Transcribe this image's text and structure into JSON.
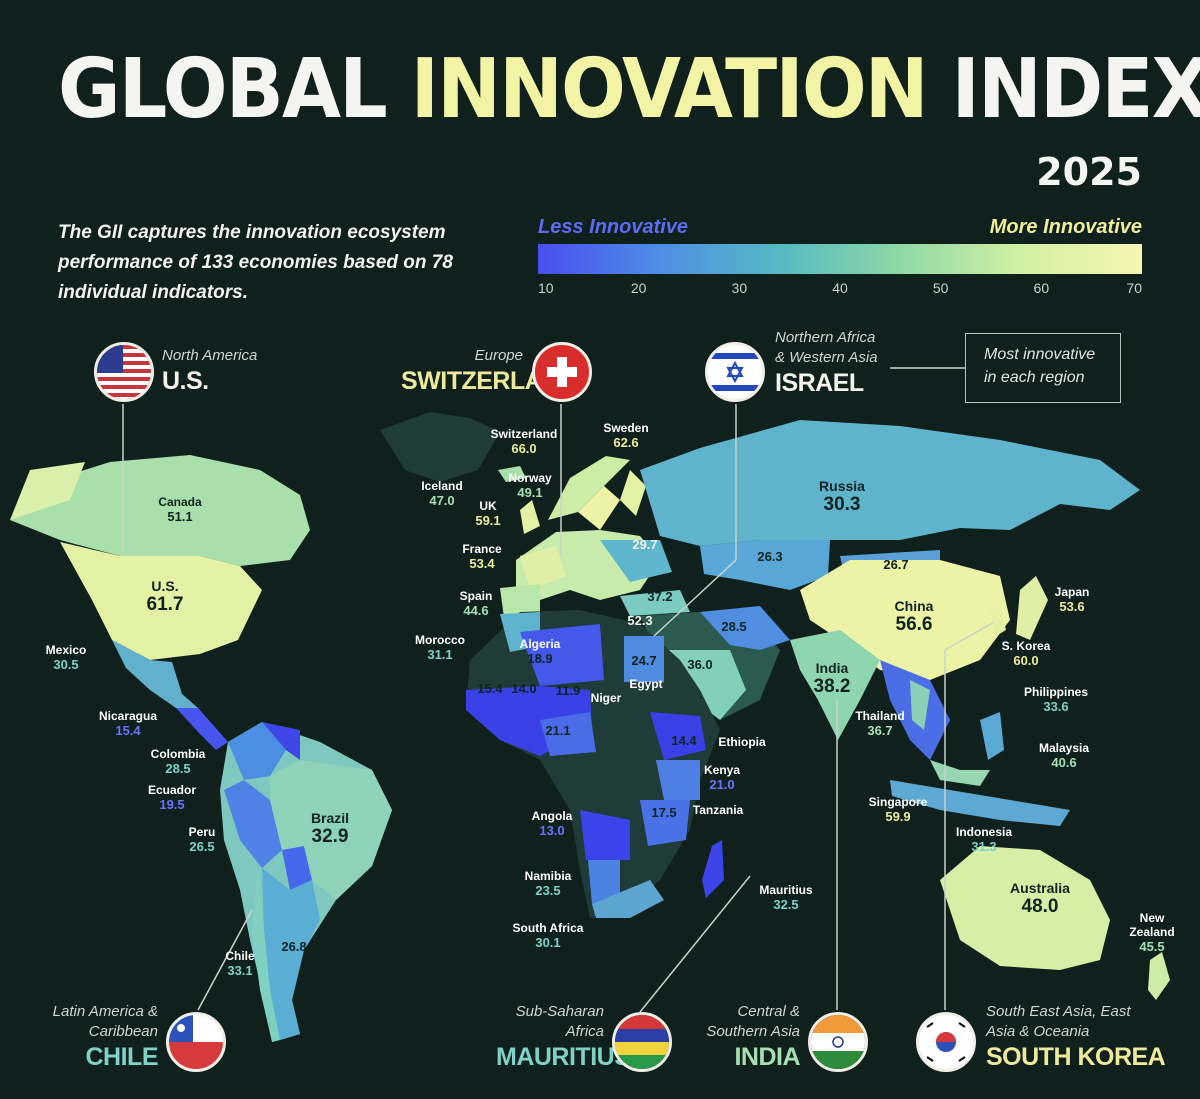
{
  "title": {
    "part1": "GLOBAL",
    "part2": "INNOVATION",
    "part3": "INDEX",
    "year": "2025"
  },
  "subtitle": "The GII captures the innovation ecosystem performance of 133 economies based on 78 individual indicators.",
  "legend": {
    "low_label": "Less Innovative",
    "high_label": "More Innovative",
    "ticks": [
      "10",
      "20",
      "30",
      "40",
      "50",
      "60",
      "70"
    ],
    "range": [
      10,
      70
    ]
  },
  "note": "Most innovative in each region",
  "colors": {
    "background": "#10201d",
    "scale_low": "#4a4ff0",
    "scale_high": "#f5f5b0",
    "accent": "#f3f3a6"
  },
  "regions": [
    {
      "region": "North America",
      "country": "U.S.",
      "flag": "us-flag"
    },
    {
      "region": "Europe",
      "country": "SWITZERLAND",
      "flag": "swiss-flag"
    },
    {
      "region": "Northern Africa & Western Asia",
      "country": "ISRAEL",
      "flag": "israel-flag"
    },
    {
      "region": "Latin America & Caribbean",
      "country": "CHILE",
      "flag": "chile-flag"
    },
    {
      "region": "Sub-Saharan Africa",
      "country": "MAURITIUS",
      "flag": "mauritius-flag"
    },
    {
      "region": "Central & Southern Asia",
      "country": "INDIA",
      "flag": "india-flag"
    },
    {
      "region": "South East Asia, East Asia & Oceania",
      "country": "SOUTH KOREA",
      "flag": "south-korea-flag"
    }
  ],
  "scores": [
    {
      "name": "Canada",
      "value": "51.1"
    },
    {
      "name": "U.S.",
      "value": "61.7"
    },
    {
      "name": "Mexico",
      "value": "30.5"
    },
    {
      "name": "Nicaragua",
      "value": "15.4"
    },
    {
      "name": "Colombia",
      "value": "28.5"
    },
    {
      "name": "Ecuador",
      "value": "19.5"
    },
    {
      "name": "Peru",
      "value": "26.5"
    },
    {
      "name": "Brazil",
      "value": "32.9"
    },
    {
      "name": "Chile",
      "value": "33.1"
    },
    {
      "name": "",
      "value": "26.8"
    },
    {
      "name": "Iceland",
      "value": "47.0"
    },
    {
      "name": "Switzerland",
      "value": "66.0"
    },
    {
      "name": "Sweden",
      "value": "62.6"
    },
    {
      "name": "Norway",
      "value": "49.1"
    },
    {
      "name": "UK",
      "value": "59.1"
    },
    {
      "name": "France",
      "value": "53.4"
    },
    {
      "name": "Spain",
      "value": "44.6"
    },
    {
      "name": "",
      "value": "29.7"
    },
    {
      "name": "",
      "value": "37.2"
    },
    {
      "name": "",
      "value": "52.3"
    },
    {
      "name": "Morocco",
      "value": "31.1"
    },
    {
      "name": "Algeria",
      "value": "18.9"
    },
    {
      "name": "",
      "value": "15.4"
    },
    {
      "name": "",
      "value": "14.0"
    },
    {
      "name": "",
      "value": "11.9"
    },
    {
      "name": "Niger",
      "value": ""
    },
    {
      "name": "",
      "value": "21.1"
    },
    {
      "name": "",
      "value": "24.7"
    },
    {
      "name": "Egypt",
      "value": ""
    },
    {
      "name": "",
      "value": "36.0"
    },
    {
      "name": "",
      "value": "28.5"
    },
    {
      "name": "",
      "value": "14.4"
    },
    {
      "name": "Ethiopia",
      "value": ""
    },
    {
      "name": "Kenya",
      "value": "21.0"
    },
    {
      "name": "",
      "value": "17.5"
    },
    {
      "name": "Tanzania",
      "value": ""
    },
    {
      "name": "Angola",
      "value": "13.0"
    },
    {
      "name": "Namibia",
      "value": "23.5"
    },
    {
      "name": "South Africa",
      "value": "30.1"
    },
    {
      "name": "Mauritius",
      "value": "32.5"
    },
    {
      "name": "Russia",
      "value": "30.3"
    },
    {
      "name": "",
      "value": "26.3"
    },
    {
      "name": "",
      "value": "26.7"
    },
    {
      "name": "China",
      "value": "56.6"
    },
    {
      "name": "Japan",
      "value": "53.6"
    },
    {
      "name": "S. Korea",
      "value": "60.0"
    },
    {
      "name": "India",
      "value": "38.2"
    },
    {
      "name": "Thailand",
      "value": "36.7"
    },
    {
      "name": "Philippines",
      "value": "33.6"
    },
    {
      "name": "Malaysia",
      "value": "40.6"
    },
    {
      "name": "Singapore",
      "value": "59.9"
    },
    {
      "name": "Indonesia",
      "value": "31.3"
    },
    {
      "name": "Australia",
      "value": "48.0"
    },
    {
      "name": "New Zealand",
      "value": "45.5"
    }
  ]
}
